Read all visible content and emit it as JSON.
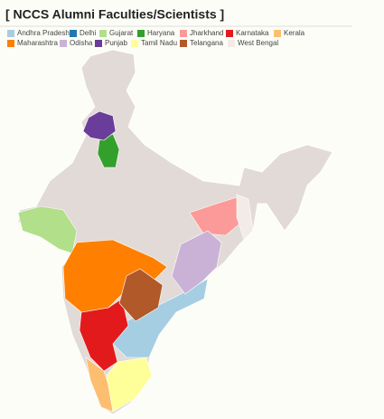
{
  "title": "[ NCCS Alumni Faculties/Scientists ]",
  "legend": [
    {
      "name": "Andhra Pradesh",
      "color": "#a6cee3"
    },
    {
      "name": "Delhi",
      "color": "#1f78b4"
    },
    {
      "name": "Gujarat",
      "color": "#b2df8a"
    },
    {
      "name": "Haryana",
      "color": "#33a02c"
    },
    {
      "name": "Jharkhand",
      "color": "#fb9a99"
    },
    {
      "name": "Karnataka",
      "color": "#e31a1c"
    },
    {
      "name": "Kerala",
      "color": "#fdbf6f"
    },
    {
      "name": "Maharashtra",
      "color": "#ff7f00"
    },
    {
      "name": "Odisha",
      "color": "#cab2d6"
    },
    {
      "name": "Punjab",
      "color": "#6a3d9a"
    },
    {
      "name": "Tamil Nadu",
      "color": "#ffff99"
    },
    {
      "name": "Telangana",
      "color": "#b15928"
    },
    {
      "name": "West Bengal",
      "color": "#f3ebe8"
    }
  ]
}
